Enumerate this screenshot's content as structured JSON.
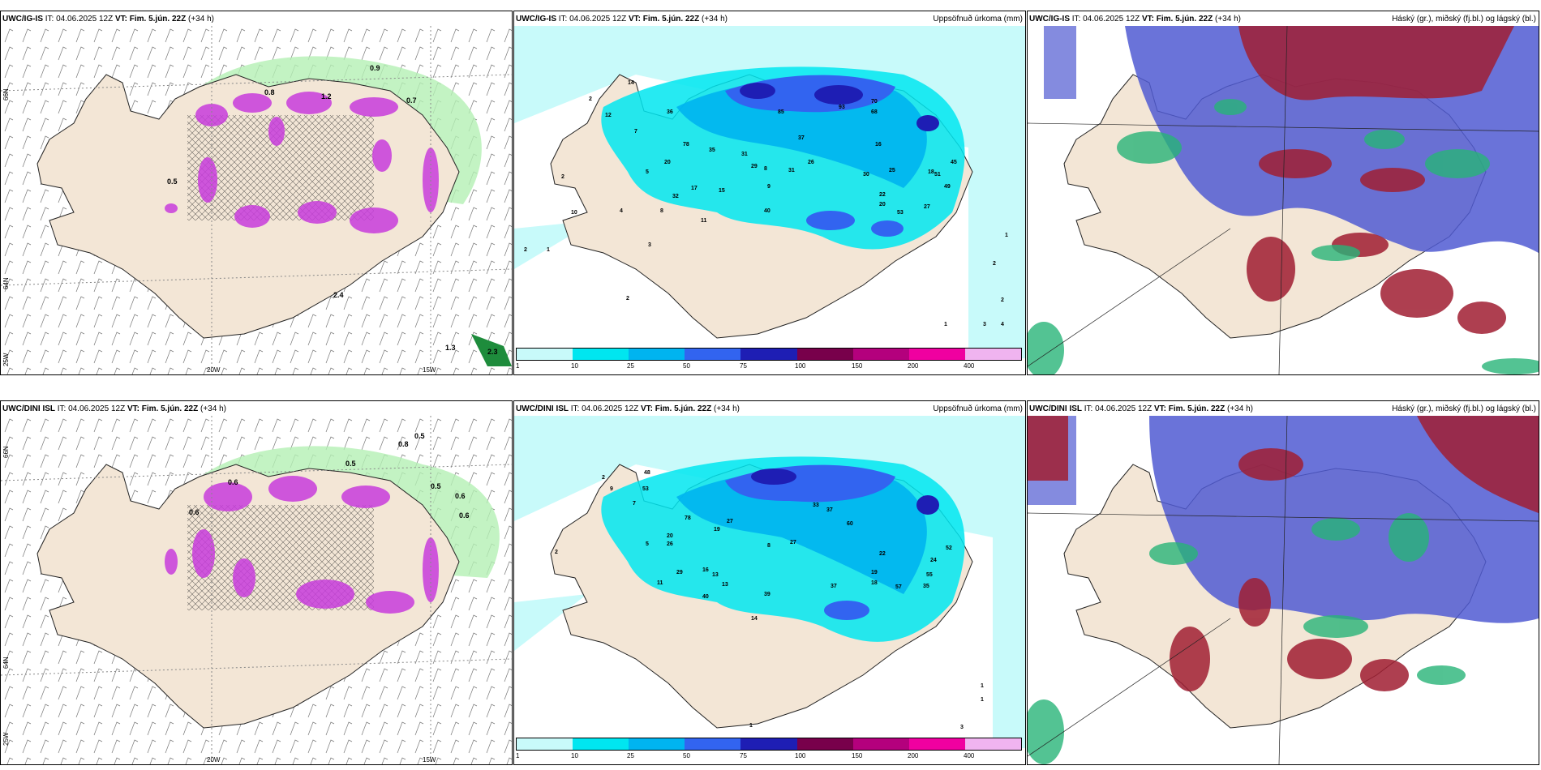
{
  "panels": {
    "p1": {
      "model": "UWC/IG-IS",
      "it": "IT: 04.06.2025 12Z",
      "vt_label": "VT:",
      "vt": "Fim. 5.jún. 22Z",
      "lead": "(+34 h)",
      "right": ""
    },
    "p2": {
      "model": "UWC/IG-IS",
      "it": "IT: 04.06.2025 12Z",
      "vt_label": "VT:",
      "vt": "Fim. 5.jún. 22Z",
      "lead": "(+34 h)",
      "right": "Uppsöfnuð úrkoma (mm)"
    },
    "p3": {
      "model": "UWC/IG-IS",
      "it": "IT: 04.06.2025 12Z",
      "vt_label": "VT:",
      "vt": "Fim. 5.jún. 22Z",
      "lead": "(+34 h)",
      "right": "Háský (gr.), miðský (fj.bl.) og lágský (bl.)"
    },
    "p4": {
      "model": "UWC/DINI ISL",
      "it": "IT: 04.06.2025 12Z",
      "vt_label": "VT:",
      "vt": "Fim. 5.jún. 22Z",
      "lead": "(+34 h)",
      "right": ""
    },
    "p5": {
      "model": "UWC/DINI ISL",
      "it": "IT: 04.06.2025 12Z",
      "vt_label": "VT:",
      "vt": "Fim. 5.jún. 22Z",
      "lead": "(+34 h)",
      "right": "Uppsöfnuð úrkoma (mm)"
    },
    "p6": {
      "model": "UWC/DINI ISL",
      "it": "IT: 04.06.2025 12Z",
      "vt_label": "VT:",
      "vt": "Fim. 5.jún. 22Z",
      "lead": "(+34 h)",
      "right": "Háský (gr.), miðský (fj.bl.) og lágský (bl.)"
    }
  },
  "axes": {
    "lat1": "66N",
    "lat2": "64N",
    "lat3": "25W",
    "lon1": "20W",
    "lon2": "15W"
  },
  "colorbar": {
    "ticks": [
      "1",
      "10",
      "25",
      "50",
      "75",
      "100",
      "150",
      "200",
      "400"
    ],
    "colors": [
      "#c8fafa",
      "#00e6f0",
      "#00b4f0",
      "#3264f0",
      "#1e1eb4",
      "#78004b",
      "#b4007d",
      "#f000a0",
      "#f0b4f0"
    ]
  },
  "colors": {
    "land": "#f3e6d6",
    "sea": "#ffffff",
    "precip_light": "#c8fafa",
    "precip_mid": "#00c8f0",
    "precip_heavy": "#2850e6",
    "snow": "#e8a0f0",
    "snow_dark": "#a000b4",
    "green": "#b4f0b4",
    "high_cloud": "#505ad2",
    "mid_cloud": "#a01e32",
    "low_cloud": "#28b478"
  },
  "map_labels": {
    "p1": [
      "0.5",
      "0.9",
      "0.7",
      "0.8",
      "1.2",
      "2.4",
      "1.3",
      "2.3"
    ],
    "p2": [
      "14",
      "12",
      "7",
      "36",
      "2",
      "5",
      "20",
      "32",
      "17",
      "15",
      "40",
      "11",
      "10",
      "4",
      "8",
      "2",
      "2",
      "1",
      "3",
      "2",
      "78",
      "35",
      "31",
      "29",
      "8",
      "31",
      "9",
      "85",
      "93",
      "70",
      "68",
      "37",
      "26",
      "16",
      "25",
      "30",
      "22",
      "20",
      "53",
      "27",
      "45",
      "51",
      "18",
      "49",
      "2",
      "1",
      "2",
      "4",
      "3",
      "1"
    ],
    "p4": [
      "0.6",
      "0.5",
      "0.6",
      "0.5",
      "0.8",
      "0.5",
      "0.6",
      "0.6"
    ],
    "p5": [
      "48",
      "53",
      "9",
      "2",
      "7",
      "5",
      "20",
      "26",
      "29",
      "16",
      "13",
      "13",
      "11",
      "39",
      "40",
      "14",
      "78",
      "19",
      "27",
      "8",
      "27",
      "33",
      "37",
      "60",
      "22",
      "19",
      "18",
      "37",
      "57",
      "24",
      "55",
      "35",
      "52",
      "2",
      "1",
      "1",
      "1",
      "3"
    ]
  }
}
